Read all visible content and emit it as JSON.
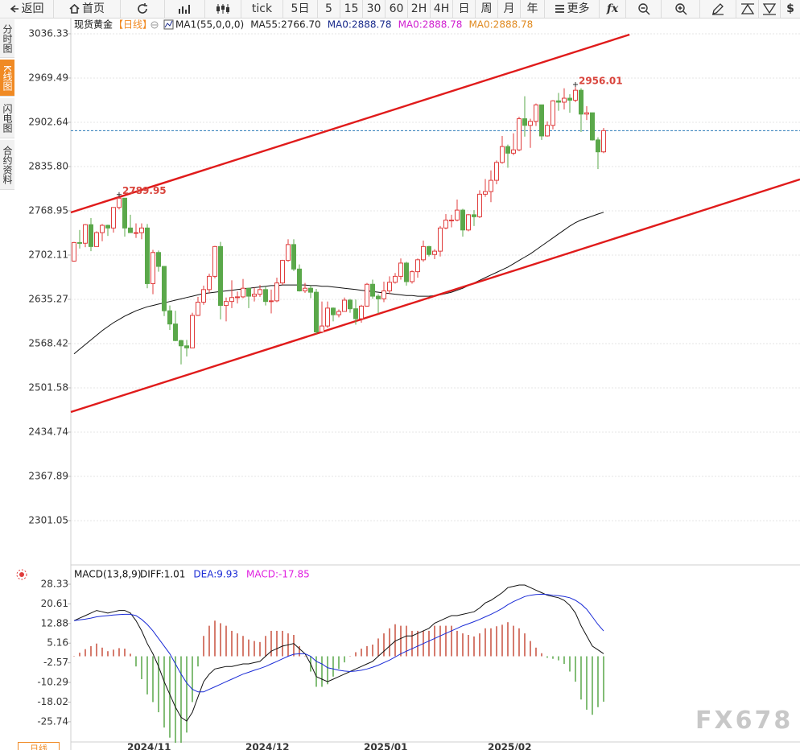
{
  "toolbar": {
    "items": [
      "返回",
      "首页",
      "tick",
      "5日",
      "5",
      "15",
      "30",
      "60",
      "2H",
      "4H",
      "日",
      "周",
      "月",
      "年",
      "更多",
      "fx",
      "$"
    ]
  },
  "side_tabs": [
    "分时图",
    "K线图",
    "闪电图",
    "合约资料"
  ],
  "footer_tab": "日线",
  "watermark": "FX678",
  "chart_data": [
    {
      "type": "candlestick",
      "title": "现货黄金",
      "period": "【日线】",
      "legend": [
        {
          "text": "MA1(55,0,0,0)",
          "color": "#222222"
        },
        {
          "text": "MA55:2766.70",
          "color": "#222222"
        },
        {
          "text": "MA0:2888.78",
          "color": "#1a2b8c"
        },
        {
          "text": "MA0:2888.78",
          "color": "#d020d0"
        },
        {
          "text": "MA0:2888.78",
          "color": "#e08a20"
        }
      ],
      "categories": [
        null,
        null,
        null,
        null,
        null,
        null,
        null,
        null,
        null,
        null,
        "2024/11",
        null,
        null,
        null,
        null,
        null,
        null,
        null,
        null,
        null,
        null,
        null,
        null,
        null,
        null,
        null,
        null,
        null,
        null,
        null,
        null,
        "2024/12",
        null,
        null,
        null,
        null,
        null,
        null,
        null,
        null,
        null,
        null,
        null,
        null,
        null,
        null,
        null,
        null,
        null,
        null,
        null,
        null,
        "2025/01",
        null,
        null,
        null,
        null,
        null,
        null,
        null,
        null,
        null,
        null,
        null,
        null,
        null,
        null,
        null,
        null,
        null,
        null,
        null,
        null,
        null,
        "2025/02",
        null,
        null,
        null,
        null,
        null,
        null,
        null,
        null,
        null,
        null,
        null,
        null,
        null,
        null,
        null,
        null,
        null,
        null,
        null,
        null
      ],
      "open": [
        2693,
        2721,
        2720,
        2748,
        2715,
        2736,
        2747,
        2743,
        2774,
        2788,
        2743,
        2736,
        2736,
        2743,
        2659,
        2706,
        2685,
        2618,
        2598,
        2573,
        2565,
        2562,
        2611,
        2631,
        2650,
        2670,
        2715,
        2626,
        2632,
        2638,
        2639,
        2652,
        2640,
        2643,
        2650,
        2632,
        2633,
        2660,
        2694,
        2718,
        2681,
        2648,
        2652,
        2646,
        2586,
        2595,
        2622,
        2612,
        2617,
        2634,
        2621,
        2606,
        2625,
        2658,
        2640,
        2636,
        2648,
        2661,
        2670,
        2690,
        2662,
        2677,
        2695,
        2715,
        2703,
        2708,
        2743,
        2755,
        2755,
        2770,
        2740,
        2763,
        2760,
        2794,
        2798,
        2815,
        2842,
        2866,
        2856,
        2861,
        2908,
        2898,
        2904,
        2929,
        2882,
        2898,
        2935,
        2933,
        2939,
        2936,
        2951,
        2915,
        2917,
        2876,
        2858
      ],
      "high": [
        2722,
        2740,
        2749,
        2758,
        2738,
        2749,
        2748,
        2773,
        2789.95,
        2788,
        2763,
        2750,
        2750,
        2749,
        2710,
        2709,
        2685,
        2626,
        2618,
        2574,
        2574,
        2615,
        2639,
        2656,
        2674,
        2716,
        2722,
        2638,
        2664,
        2647,
        2666,
        2652,
        2653,
        2657,
        2655,
        2650,
        2668,
        2695,
        2726,
        2726,
        2688,
        2660,
        2656,
        2651,
        2632,
        2632,
        2623,
        2620,
        2638,
        2636,
        2635,
        2627,
        2660,
        2665,
        2643,
        2662,
        2670,
        2675,
        2697,
        2692,
        2679,
        2697,
        2724,
        2716,
        2711,
        2746,
        2764,
        2763,
        2786,
        2772,
        2764,
        2770,
        2800,
        2817,
        2830,
        2845,
        2882,
        2869,
        2886,
        2911,
        2942,
        2908,
        2931,
        2929,
        2904,
        2936,
        2947,
        2954,
        2945,
        2956.01,
        2954,
        2927,
        2917,
        2880,
        2894
      ],
      "low": [
        2692,
        2712,
        2714,
        2708,
        2715,
        2723,
        2731,
        2736,
        2771,
        2730,
        2736,
        2728,
        2726,
        2652,
        2643,
        2677,
        2610,
        2589,
        2572,
        2537,
        2549,
        2562,
        2610,
        2627,
        2644,
        2667,
        2605,
        2602,
        2622,
        2629,
        2637,
        2622,
        2632,
        2639,
        2626,
        2614,
        2631,
        2657,
        2692,
        2678,
        2647,
        2645,
        2637,
        2583,
        2584,
        2592,
        2602,
        2608,
        2617,
        2615,
        2597,
        2600,
        2624,
        2636,
        2614,
        2631,
        2643,
        2659,
        2665,
        2656,
        2659,
        2668,
        2692,
        2700,
        2696,
        2700,
        2741,
        2744,
        2753,
        2730,
        2738,
        2746,
        2758,
        2790,
        2782,
        2809,
        2840,
        2834,
        2853,
        2859,
        2881,
        2864,
        2897,
        2876,
        2881,
        2892,
        2920,
        2922,
        2917,
        2933,
        2888,
        2906,
        2875,
        2832,
        2856
      ],
      "close": [
        2721,
        2720,
        2748,
        2715,
        2736,
        2747,
        2743,
        2774,
        2788,
        2743,
        2736,
        2736,
        2743,
        2659,
        2706,
        2685,
        2618,
        2598,
        2573,
        2565,
        2562,
        2611,
        2631,
        2650,
        2670,
        2715,
        2626,
        2632,
        2638,
        2639,
        2652,
        2640,
        2643,
        2650,
        2632,
        2633,
        2660,
        2694,
        2718,
        2681,
        2648,
        2652,
        2646,
        2586,
        2595,
        2622,
        2612,
        2617,
        2634,
        2621,
        2606,
        2625,
        2658,
        2640,
        2636,
        2648,
        2661,
        2670,
        2690,
        2662,
        2677,
        2695,
        2715,
        2703,
        2708,
        2743,
        2755,
        2755,
        2770,
        2740,
        2763,
        2760,
        2794,
        2798,
        2815,
        2842,
        2866,
        2856,
        2861,
        2908,
        2898,
        2904,
        2929,
        2882,
        2898,
        2935,
        2933,
        2939,
        2936,
        2951,
        2915,
        2917,
        2876,
        2858,
        2890
      ],
      "up_color": "#e03c3c",
      "down_color": "#5aa84a",
      "ma": {
        "color": "#111111",
        "values": [
          2553,
          2560,
          2567,
          2574,
          2581,
          2588,
          2594,
          2600,
          2605,
          2610,
          2614,
          2618,
          2621,
          2624,
          2626,
          2628,
          2630,
          2632,
          2634,
          2636,
          2638,
          2640,
          2642,
          2644,
          2645,
          2646,
          2647,
          2648,
          2649,
          2650,
          2651,
          2652,
          2653,
          2654,
          2655,
          2656,
          2656,
          2657,
          2657,
          2657,
          2657,
          2657,
          2656,
          2656,
          2655,
          2655,
          2654,
          2653,
          2652,
          2651,
          2650,
          2649,
          2648,
          2647,
          2646,
          2645,
          2644,
          2643,
          2642,
          2641,
          2641,
          2640,
          2640,
          2640,
          2641,
          2642,
          2644,
          2646,
          2649,
          2652,
          2656,
          2660,
          2664,
          2668,
          2672,
          2676,
          2680,
          2684,
          2689,
          2694,
          2699,
          2704,
          2710,
          2716,
          2722,
          2728,
          2734,
          2740,
          2746,
          2751,
          2755,
          2758,
          2761,
          2764,
          2766.7
        ]
      },
      "trendlines": [
        {
          "x": [
            -0.57,
            98.6
          ],
          "y": [
            2766.5,
            3035.1
          ]
        },
        {
          "x": [
            -0.57,
            128.86
          ],
          "y": [
            2465.1,
            2816.4
          ]
        }
      ],
      "trendline_color": "#e01b1b",
      "last_price_color": "#2a7ab8",
      "annotations": [
        {
          "x": 8,
          "value": 2789.95
        },
        {
          "x": 89,
          "value": 2956.01
        }
      ],
      "annotation_color": "#d9453d",
      "xlim": [
        -0.57,
        128.86
      ],
      "ylim": [
        2236.6,
        3053.3
      ],
      "yticks": [
        3036.33,
        2969.49,
        2902.64,
        {
          "value": 2835.8,
          "label": "2835.80"
        },
        2768.95,
        2702.11,
        2635.27,
        2568.42,
        2501.58,
        2434.74,
        2367.89,
        2301.05
      ],
      "grid": true
    },
    {
      "type": "macd",
      "title": "MACD(13,8,9)",
      "series": [
        {
          "name": "DIFF:1.01",
          "color": "#111111",
          "style": "line",
          "values": [
            14,
            15,
            16,
            17,
            18,
            17.5,
            17,
            17.5,
            18,
            18,
            17,
            14,
            10,
            5,
            1,
            -4,
            -10,
            -15,
            -20,
            -24,
            -25.5,
            -22,
            -16,
            -10,
            -7,
            -5,
            -4.5,
            -4,
            -4,
            -3.5,
            -3,
            -3,
            -2.5,
            -2,
            0,
            2,
            3,
            4,
            4.5,
            5,
            3,
            1,
            -3,
            -8,
            -9,
            -10,
            -9,
            -8,
            -7,
            -6,
            -5,
            -4,
            -3,
            -2,
            0,
            2,
            4,
            6,
            7,
            8,
            8,
            9,
            10,
            11,
            13,
            14,
            15,
            16,
            16,
            16.5,
            17,
            17.5,
            19,
            21,
            22,
            23.5,
            25,
            27,
            27.5,
            28,
            28,
            27,
            26,
            25,
            24,
            23.5,
            23,
            22,
            20,
            17,
            12,
            8,
            4,
            2.5,
            1.01
          ]
        },
        {
          "name": "DEA:9.93",
          "color": "#1a2bd6",
          "style": "line",
          "values": [
            14,
            14.3,
            14.6,
            15,
            15.5,
            15.8,
            16,
            16.2,
            16.4,
            16.5,
            16.5,
            16,
            14.5,
            12.5,
            10,
            7,
            4,
            1,
            -3,
            -7,
            -10.5,
            -13,
            -14,
            -14,
            -13,
            -12,
            -11,
            -10,
            -9,
            -8,
            -7,
            -6.3,
            -5.5,
            -4.8,
            -4,
            -3,
            -2,
            -1,
            0,
            0.8,
            1,
            1,
            0,
            -2,
            -3,
            -4.5,
            -5,
            -5.5,
            -5.8,
            -6,
            -5.8,
            -5.5,
            -5,
            -4.3,
            -3.5,
            -2.5,
            -1.5,
            -0.3,
            1,
            2,
            3,
            4,
            5,
            6,
            7,
            8,
            9,
            10,
            11,
            12,
            12.8,
            13.6,
            14.5,
            15.5,
            16.5,
            17.6,
            18.8,
            20.3,
            21.5,
            22.5,
            23.5,
            24,
            24.3,
            24.4,
            24.3,
            24,
            23.8,
            23.5,
            23,
            22,
            20.5,
            18.5,
            15.5,
            12.5,
            9.93
          ]
        },
        {
          "name": "MACD:-17.85",
          "color": "#e020e0",
          "style": "histogram",
          "values": [
            0,
            1.4,
            2.8,
            4,
            5,
            3.4,
            2,
            2.6,
            3.2,
            3,
            1,
            -4,
            -9,
            -15,
            -18,
            -22,
            -28,
            -32,
            -34,
            -34,
            -30,
            -18,
            -4,
            8,
            12,
            14,
            13,
            12,
            10,
            9,
            8,
            6.6,
            6,
            5.6,
            8,
            10,
            10,
            10,
            9,
            8.4,
            4,
            0,
            -6,
            -12,
            -12,
            -11,
            -8,
            -5,
            -2.4,
            0,
            1.6,
            3,
            4,
            4.6,
            7,
            9,
            11,
            12.6,
            12,
            12,
            10,
            10,
            10,
            10,
            12,
            12,
            12,
            12,
            10,
            9,
            8.4,
            7.8,
            9,
            11,
            11,
            11.8,
            12.4,
            13.4,
            12,
            11,
            9,
            6,
            3.4,
            1.2,
            -0.6,
            -1,
            -1.6,
            -3,
            -6,
            -10,
            -17,
            -21,
            -23,
            -20,
            -17.85
          ]
        }
      ],
      "hist_up_color": "#c8503e",
      "hist_down_color": "#5aa84a",
      "ylim": [
        -33.05,
        34.97
      ],
      "yticks": [
        28.33,
        20.61,
        12.88,
        5.16,
        -2.57,
        -10.29,
        -18.02,
        -25.74
      ],
      "grid": false
    }
  ]
}
